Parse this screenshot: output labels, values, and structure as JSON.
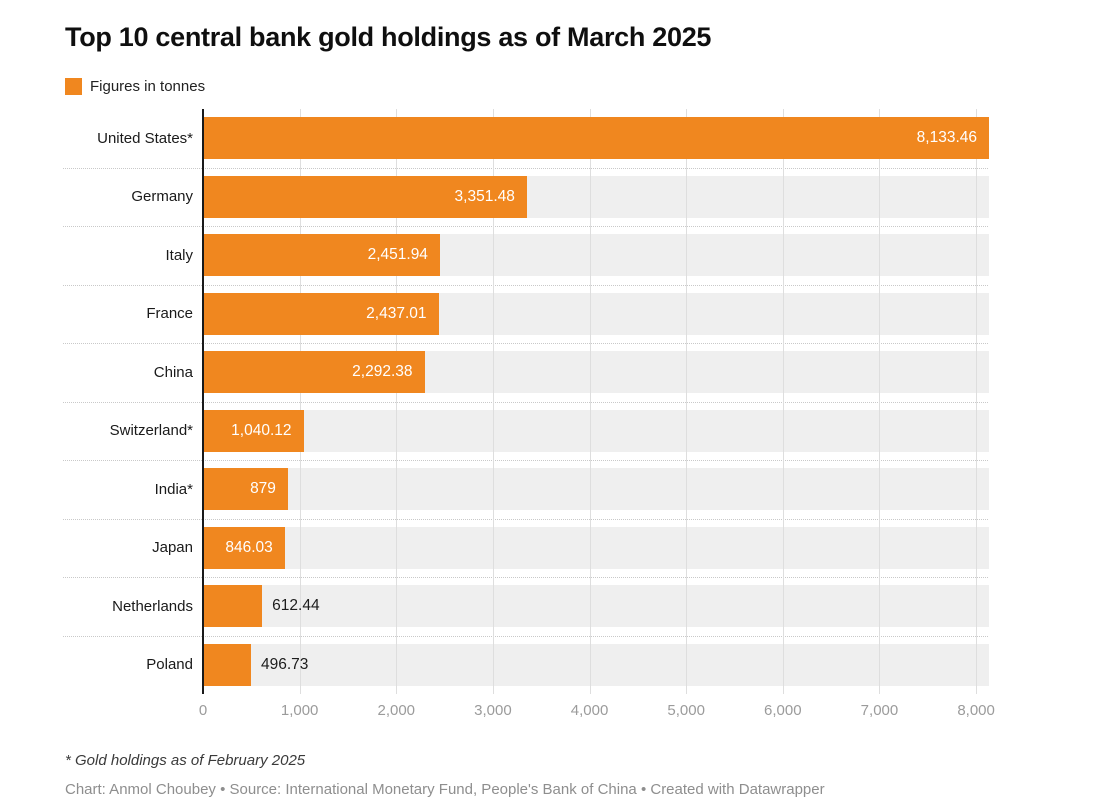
{
  "header": {
    "title": "Top 10 central bank gold holdings as of March 2025"
  },
  "legend": {
    "label": "Figures in tonnes",
    "swatch_color": "#F0871F"
  },
  "chart_data": {
    "type": "bar",
    "orientation": "horizontal",
    "title": "Top 10 central bank gold holdings as of March 2025",
    "unit": "tonnes",
    "categories": [
      "United States*",
      "Germany",
      "Italy",
      "France",
      "China",
      "Switzerland*",
      "India*",
      "Japan",
      "Netherlands",
      "Poland"
    ],
    "values": [
      8133.46,
      3351.48,
      2451.94,
      2437.01,
      2292.38,
      1040.12,
      879,
      846.03,
      612.44,
      496.73
    ],
    "value_labels": [
      "8,133.46",
      "3,351.48",
      "2,451.94",
      "2,437.01",
      "2,292.38",
      "1,040.12",
      "879",
      "846.03",
      "612.44",
      "496.73"
    ],
    "xlabel": "",
    "ylabel": "",
    "xlim": [
      0,
      8133.46
    ],
    "x_ticks": [
      0,
      1000,
      2000,
      3000,
      4000,
      5000,
      6000,
      7000,
      8000
    ],
    "x_tick_labels": [
      "0",
      "1,000",
      "2,000",
      "3,000",
      "4,000",
      "5,000",
      "6,000",
      "7,000",
      "8,000"
    ],
    "grid": true,
    "legend_position": "top-left",
    "bar_color": "#F0871F",
    "track_color": "#efefef",
    "axis_color": "#1a1a1a",
    "tick_label_color": "#9b9b9b",
    "value_label_inside_color": "#ffffff",
    "value_label_outside_color": "#1d1d1d"
  },
  "footer": {
    "footnote": "* Gold holdings as of February 2025",
    "attribution": "Chart: Anmol Choubey • Source: International Monetary Fund, People's Bank of China • Created with Datawrapper"
  }
}
